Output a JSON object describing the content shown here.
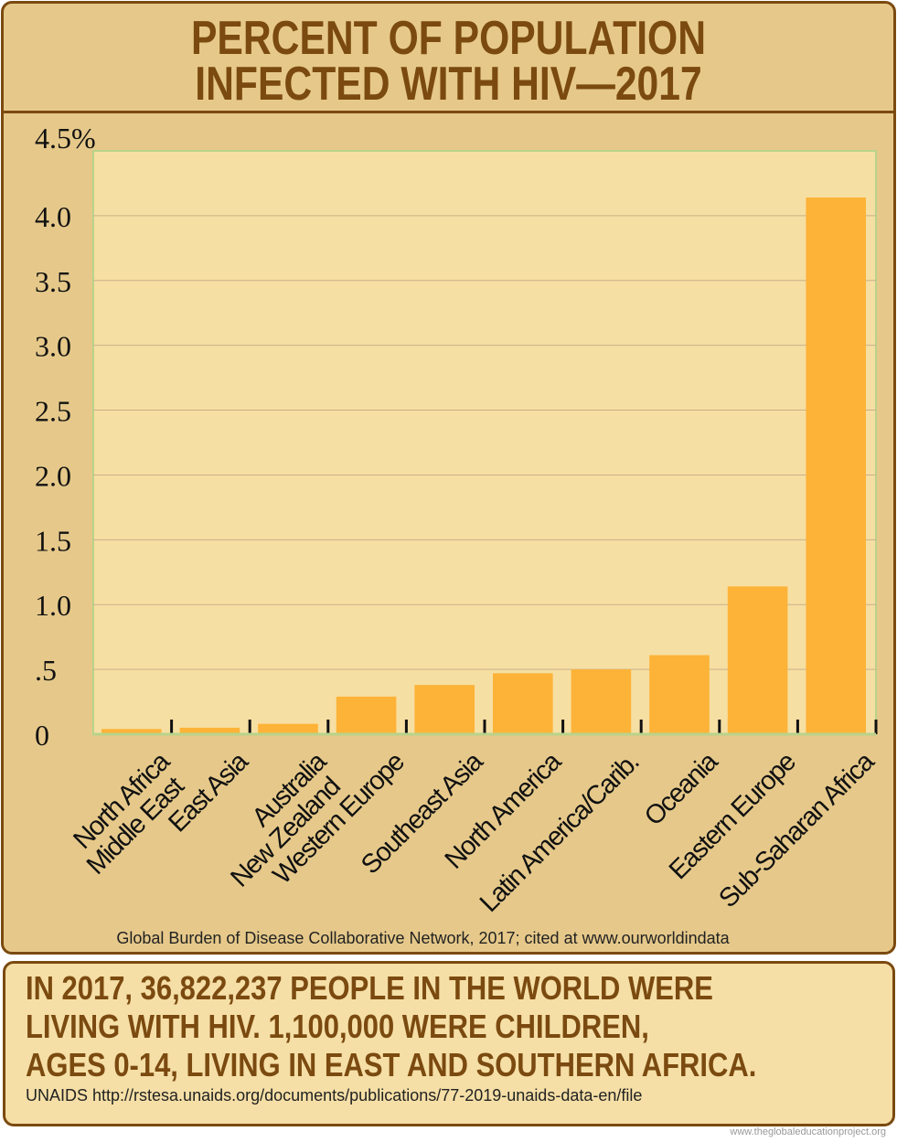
{
  "chart_data": {
    "type": "bar",
    "title": "PERCENT OF POPULATION INFECTED WITH HIV—2017",
    "title_lines": [
      "PERCENT OF POPULATION",
      "INFECTED WITH HIV—2017"
    ],
    "categories": [
      [
        "North Africa",
        "Middle East"
      ],
      [
        "East Asia"
      ],
      [
        "Australia",
        "New Zealand"
      ],
      [
        "Western Europe"
      ],
      [
        "Southeast Asia"
      ],
      [
        "North America"
      ],
      [
        "Latin America/Carib."
      ],
      [
        "Oceania"
      ],
      [
        "Eastern Europe"
      ],
      [
        "Sub-Saharan Africa"
      ]
    ],
    "values": [
      0.04,
      0.05,
      0.08,
      0.29,
      0.38,
      0.47,
      0.5,
      0.61,
      1.14,
      4.14
    ],
    "ylim": [
      0,
      4.5
    ],
    "yticks": [
      0,
      0.5,
      1,
      1.5,
      2,
      2.5,
      3,
      3.5,
      4,
      4.5
    ],
    "ytick_labels": [
      "0",
      ".5",
      "1.0",
      "1.5",
      "2.0",
      "2.5",
      "3.0",
      "3.5",
      "4.0",
      "4.5%"
    ],
    "grid": true,
    "xlabel": "",
    "ylabel": "",
    "colors": {
      "bar": "#fdb338",
      "plot_bg": "#f6dfa2",
      "panel_bg": "#e6c98a",
      "title": "#7b4a10",
      "grid": "#c9b08a",
      "plot_border": "#b8d38a"
    }
  },
  "source": "Global Burden of Disease Collaborative Network, 2017; cited at www.ourworldindata",
  "fact_lines": [
    "IN 2017, 36,822,237 PEOPLE IN THE WORLD WERE",
    "LIVING WITH HIV. 1,100,000 WERE CHILDREN,",
    "AGES 0-14, LIVING IN EAST AND SOUTHERN AFRICA."
  ],
  "fact_source": "UNAIDS http://rstesa.unaids.org/documents/publications/77-2019-unaids-data-en/file",
  "credit": "www.theglobaleducationproject.org"
}
